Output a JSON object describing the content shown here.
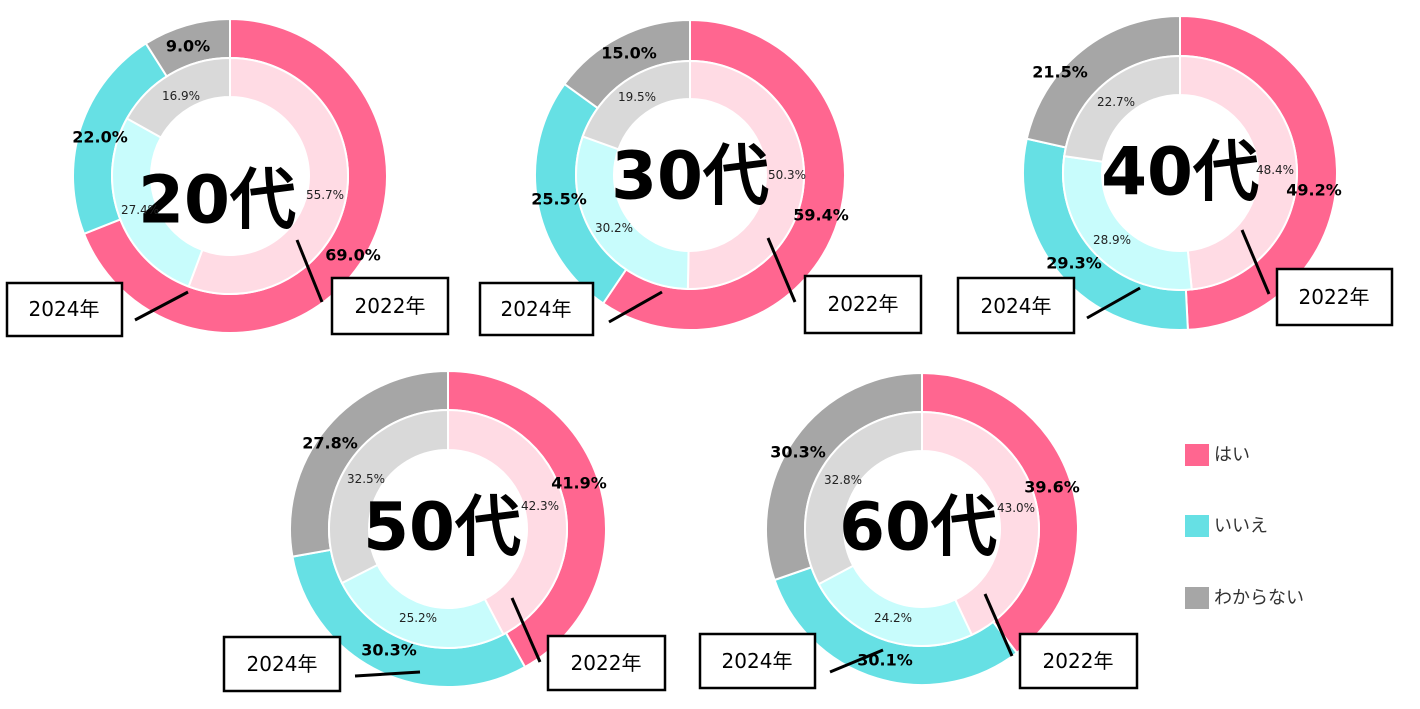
{
  "chart_data": [
    {
      "type": "pie",
      "title": "20代",
      "categories": [
        "はい",
        "いいえ",
        "わからない"
      ],
      "series": [
        {
          "name": "2022年",
          "values": [
            69.0,
            22.0,
            9.0
          ],
          "labels": [
            "69.0%",
            "22.0%",
            "9.0%"
          ]
        },
        {
          "name": "2024年",
          "values": [
            55.7,
            27.4,
            16.9
          ],
          "labels": [
            "55.7%",
            "27.4%",
            "16.9%"
          ]
        }
      ]
    },
    {
      "type": "pie",
      "title": "30代",
      "categories": [
        "はい",
        "いいえ",
        "わからない"
      ],
      "series": [
        {
          "name": "2022年",
          "values": [
            59.4,
            25.5,
            15.0
          ],
          "labels": [
            "59.4%",
            "25.5%",
            "15.0%"
          ]
        },
        {
          "name": "2024年",
          "values": [
            50.3,
            30.2,
            19.5
          ],
          "labels": [
            "50.3%",
            "30.2%",
            "19.5%"
          ]
        }
      ]
    },
    {
      "type": "pie",
      "title": "40代",
      "categories": [
        "はい",
        "いいえ",
        "わからない"
      ],
      "series": [
        {
          "name": "2022年",
          "values": [
            49.2,
            29.3,
            21.5
          ],
          "labels": [
            "49.2%",
            "29.3%",
            "21.5%"
          ]
        },
        {
          "name": "2024年",
          "values": [
            48.4,
            28.9,
            22.7
          ],
          "labels": [
            "48.4%",
            "28.9%",
            "22.7%"
          ]
        }
      ]
    },
    {
      "type": "pie",
      "title": "50代",
      "categories": [
        "はい",
        "いいえ",
        "わからない"
      ],
      "series": [
        {
          "name": "2022年",
          "values": [
            41.9,
            30.3,
            27.8
          ],
          "labels": [
            "41.9%",
            "30.3%",
            "27.8%"
          ]
        },
        {
          "name": "2024年",
          "values": [
            42.3,
            25.2,
            32.5
          ],
          "labels": [
            "42.3%",
            "25.2%",
            "32.5%"
          ]
        }
      ]
    },
    {
      "type": "pie",
      "title": "60代",
      "categories": [
        "はい",
        "いいえ",
        "わからない"
      ],
      "series": [
        {
          "name": "2022年",
          "values": [
            39.6,
            30.1,
            30.3
          ],
          "labels": [
            "39.6%",
            "30.1%",
            "30.3%"
          ]
        },
        {
          "name": "2024年",
          "values": [
            43.0,
            24.2,
            32.8
          ],
          "labels": [
            "43.0%",
            "24.2%",
            "32.8%"
          ]
        }
      ]
    }
  ],
  "legend": {
    "placement": "right",
    "items": [
      {
        "label": "はい"
      },
      {
        "label": "いいえ"
      },
      {
        "label": "わからない"
      }
    ]
  },
  "colors": {
    "outer": [
      "#ff6690",
      "#66e0e4",
      "#a6a6a6"
    ],
    "inner": [
      "#ffdbe4",
      "#c8fcfc",
      "#d9d9d9"
    ],
    "legend": [
      "#ff6690",
      "#66e0e4",
      "#a6a6a6"
    ]
  }
}
